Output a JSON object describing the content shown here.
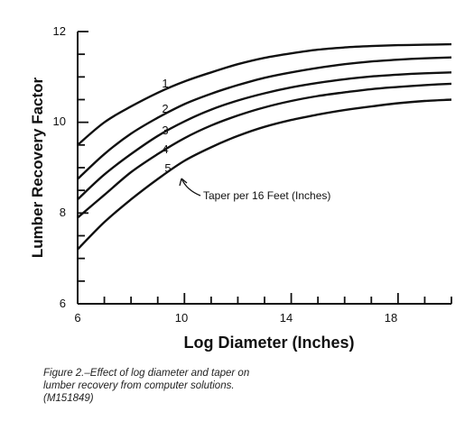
{
  "chart_data": {
    "type": "line",
    "title": "",
    "xlabel": "Log Diameter (Inches)",
    "ylabel": "Lumber Recovery Factor",
    "xlim": [
      6,
      20
    ],
    "ylim": [
      6,
      12
    ],
    "x_ticks": [
      6,
      10,
      14,
      18
    ],
    "y_ticks": [
      6,
      8,
      10,
      12
    ],
    "grid": false,
    "series": [
      {
        "name": "1",
        "x": [
          6,
          7,
          8,
          9,
          10,
          11,
          12,
          13,
          14,
          15,
          16,
          17,
          18,
          19,
          20
        ],
        "y": [
          9.5,
          10.0,
          10.35,
          10.65,
          10.9,
          11.1,
          11.28,
          11.42,
          11.52,
          11.6,
          11.65,
          11.68,
          11.7,
          11.71,
          11.72
        ]
      },
      {
        "name": "2",
        "x": [
          6,
          7,
          8,
          9,
          10,
          11,
          12,
          13,
          14,
          15,
          16,
          17,
          18,
          19,
          20
        ],
        "y": [
          8.75,
          9.3,
          9.75,
          10.1,
          10.4,
          10.63,
          10.82,
          10.98,
          11.1,
          11.2,
          11.28,
          11.34,
          11.38,
          11.41,
          11.43
        ]
      },
      {
        "name": "3",
        "x": [
          6,
          7,
          8,
          9,
          10,
          11,
          12,
          13,
          14,
          15,
          16,
          17,
          18,
          19,
          20
        ],
        "y": [
          8.3,
          8.85,
          9.3,
          9.7,
          10.02,
          10.28,
          10.48,
          10.64,
          10.77,
          10.87,
          10.95,
          11.01,
          11.05,
          11.08,
          11.1
        ]
      },
      {
        "name": "4",
        "x": [
          6,
          7,
          8,
          9,
          10,
          11,
          12,
          13,
          14,
          15,
          16,
          17,
          18,
          19,
          20
        ],
        "y": [
          7.9,
          8.4,
          8.9,
          9.3,
          9.65,
          9.93,
          10.15,
          10.33,
          10.47,
          10.58,
          10.66,
          10.73,
          10.78,
          10.82,
          10.85
        ]
      },
      {
        "name": "5",
        "x": [
          6,
          7,
          8,
          9,
          10,
          11,
          12,
          13,
          14,
          15,
          16,
          17,
          18,
          19,
          20
        ],
        "y": [
          7.2,
          7.8,
          8.3,
          8.75,
          9.15,
          9.45,
          9.7,
          9.9,
          10.05,
          10.17,
          10.27,
          10.35,
          10.42,
          10.47,
          10.5
        ]
      }
    ],
    "annotation": "Taper per 16 Feet (Inches)"
  },
  "labels": {
    "x_ticks": [
      "6",
      "10",
      "14",
      "18"
    ],
    "y_ticks": [
      "6",
      "8",
      "10",
      "12"
    ]
  },
  "caption": "Figure 2.–Effect of log diameter and taper on\nlumber recovery from computer solutions.\n(M151849)"
}
